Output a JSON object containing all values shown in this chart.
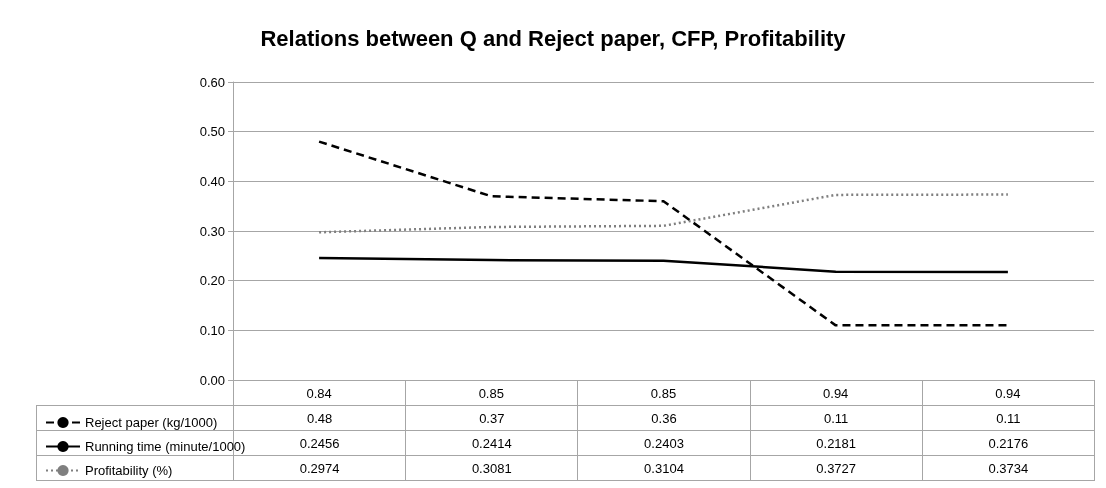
{
  "chart_data": {
    "type": "line",
    "title": "Relations between Q and Reject paper, CFP, Profitability",
    "categories": [
      "0.84",
      "0.85",
      "0.85",
      "0.94",
      "0.94"
    ],
    "series": [
      {
        "name": "Reject paper (kg/1000)",
        "color": "#000000",
        "line_style": "dashed",
        "values": [
          0.48,
          0.37,
          0.36,
          0.11,
          0.11
        ]
      },
      {
        "name": "Running time (minute/1000)",
        "color": "#000000",
        "line_style": "solid",
        "values": [
          0.2456,
          0.2414,
          0.2403,
          0.2181,
          0.2176
        ]
      },
      {
        "name": "Profitability (%)",
        "color": "#7f7f7f",
        "line_style": "dotted",
        "values": [
          0.2974,
          0.3081,
          0.3104,
          0.3727,
          0.3734
        ]
      }
    ],
    "ylim": [
      0,
      0.6
    ],
    "yticks": [
      {
        "value": 0,
        "label": "0.00"
      },
      {
        "value": 0.1,
        "label": "0.10"
      },
      {
        "value": 0.2,
        "label": "0.20"
      },
      {
        "value": 0.3,
        "label": "0.30"
      },
      {
        "value": 0.4,
        "label": "0.40"
      },
      {
        "value": 0.5,
        "label": "0.50"
      },
      {
        "value": 0.6,
        "label": "0.60"
      }
    ],
    "grid": "y",
    "marker": "none",
    "legend": "bottom left",
    "data_labels": true
  }
}
